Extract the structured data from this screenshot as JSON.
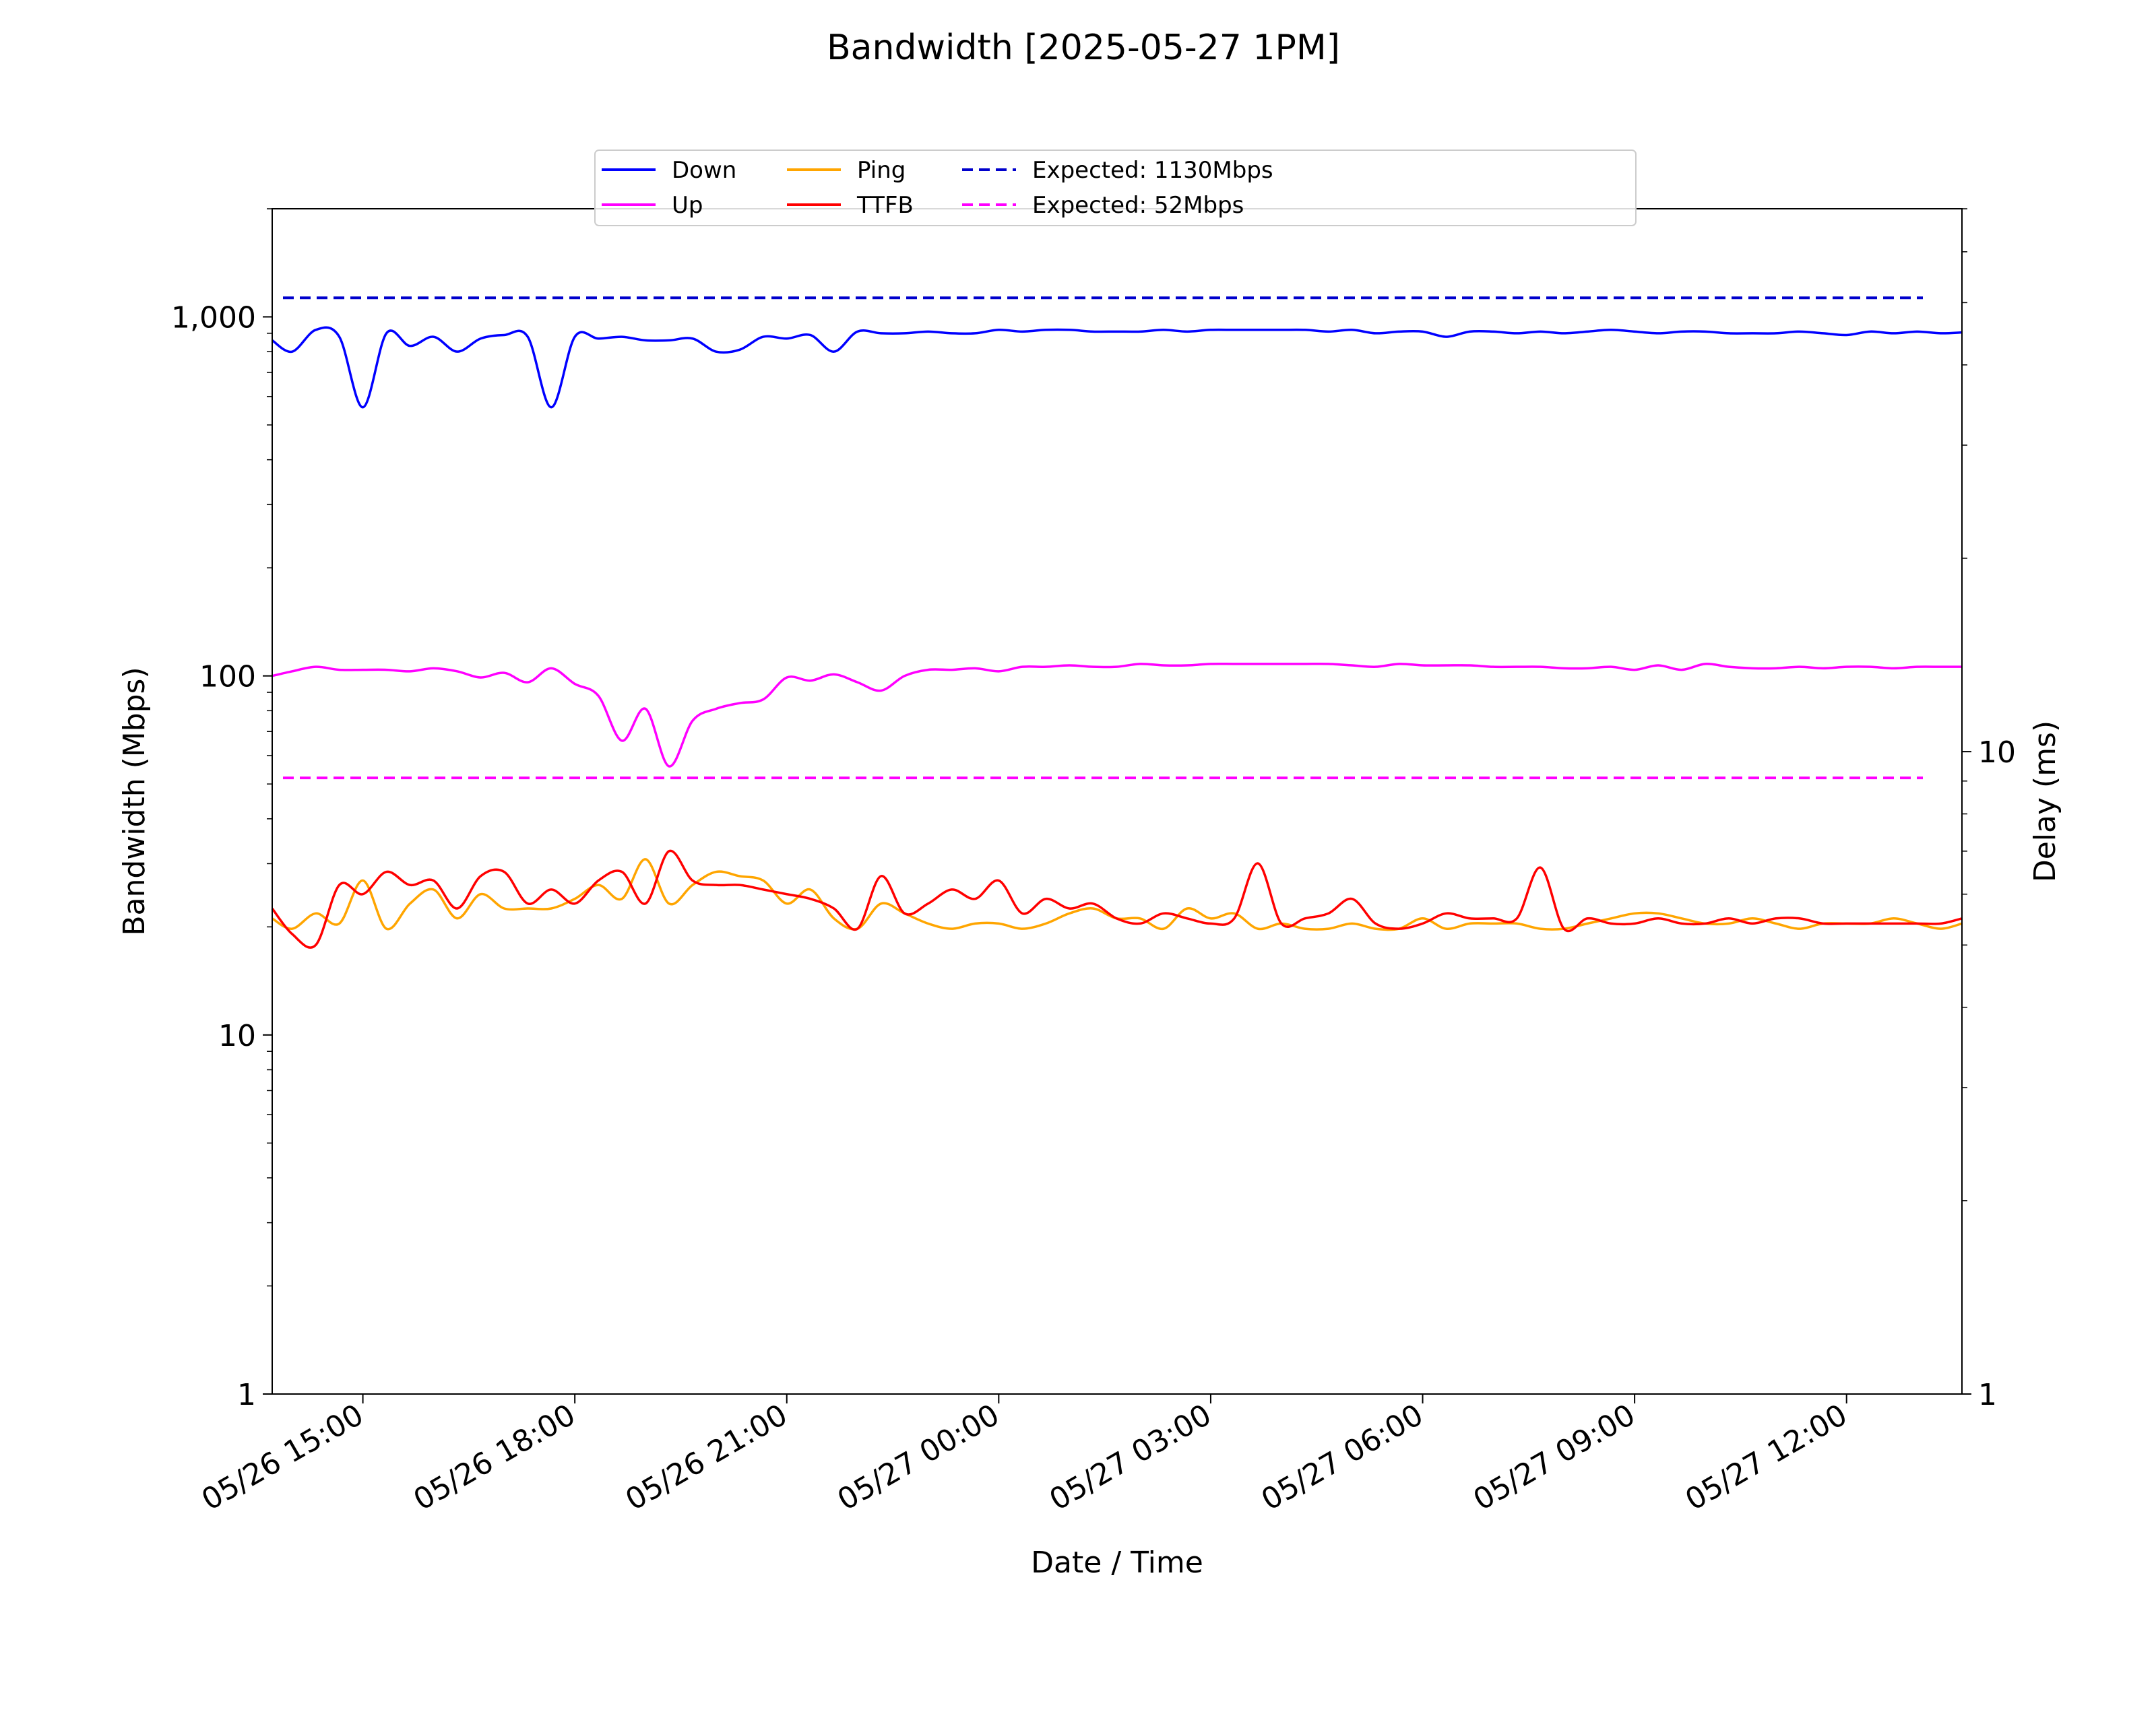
{
  "chart_data": {
    "type": "line",
    "title": "Bandwidth [2025-05-27 1PM]",
    "xlabel": "Date / Time",
    "ylabel": "Bandwidth (Mbps)",
    "y2label": "Delay (ms)",
    "x_range": [
      "2025-05-26 13:43",
      "2025-05-27 13:38"
    ],
    "x_ticks": [
      "05/26 15:00",
      "05/26 18:00",
      "05/26 21:00",
      "05/27 00:00",
      "05/27 03:00",
      "05/27 06:00",
      "05/27 09:00",
      "05/27 12:00"
    ],
    "x_tick_times": [
      "2025-05-26 15:00",
      "2025-05-26 18:00",
      "2025-05-26 21:00",
      "2025-05-27 00:00",
      "2025-05-27 03:00",
      "2025-05-27 06:00",
      "2025-05-27 09:00",
      "2025-05-27 12:00"
    ],
    "y_scale": "log",
    "ylim": [
      1,
      2000
    ],
    "y_ticks": [
      1,
      10,
      100,
      1000
    ],
    "y_tick_labels": [
      "1",
      "10",
      "100",
      "1,000"
    ],
    "y2_scale": "log",
    "y2lim": [
      1,
      70
    ],
    "y2_ticks": [
      1,
      10
    ],
    "y2_tick_labels": [
      "1",
      "10"
    ],
    "grid": false,
    "legend_position": "top-center",
    "legend_columns": 4,
    "x": [
      "2025-05-26 13:43",
      "2025-05-26 14:00",
      "2025-05-26 14:20",
      "2025-05-26 14:40",
      "2025-05-26 15:00",
      "2025-05-26 15:20",
      "2025-05-26 15:40",
      "2025-05-26 16:00",
      "2025-05-26 16:20",
      "2025-05-26 16:40",
      "2025-05-26 17:00",
      "2025-05-26 17:20",
      "2025-05-26 17:40",
      "2025-05-26 18:00",
      "2025-05-26 18:20",
      "2025-05-26 18:40",
      "2025-05-26 19:00",
      "2025-05-26 19:20",
      "2025-05-26 19:40",
      "2025-05-26 20:00",
      "2025-05-26 20:20",
      "2025-05-26 20:40",
      "2025-05-26 21:00",
      "2025-05-26 21:20",
      "2025-05-26 21:40",
      "2025-05-26 22:00",
      "2025-05-26 22:20",
      "2025-05-26 22:40",
      "2025-05-26 23:00",
      "2025-05-26 23:20",
      "2025-05-26 23:40",
      "2025-05-27 00:00",
      "2025-05-27 00:20",
      "2025-05-27 00:40",
      "2025-05-27 01:00",
      "2025-05-27 01:20",
      "2025-05-27 01:40",
      "2025-05-27 02:00",
      "2025-05-27 02:20",
      "2025-05-27 02:40",
      "2025-05-27 03:00",
      "2025-05-27 03:20",
      "2025-05-27 03:40",
      "2025-05-27 04:00",
      "2025-05-27 04:20",
      "2025-05-27 04:40",
      "2025-05-27 05:00",
      "2025-05-27 05:20",
      "2025-05-27 05:40",
      "2025-05-27 06:00",
      "2025-05-27 06:20",
      "2025-05-27 06:40",
      "2025-05-27 07:00",
      "2025-05-27 07:20",
      "2025-05-27 07:40",
      "2025-05-27 08:00",
      "2025-05-27 08:20",
      "2025-05-27 08:40",
      "2025-05-27 09:00",
      "2025-05-27 09:20",
      "2025-05-27 09:40",
      "2025-05-27 10:00",
      "2025-05-27 10:20",
      "2025-05-27 10:40",
      "2025-05-27 11:00",
      "2025-05-27 11:20",
      "2025-05-27 11:40",
      "2025-05-27 12:00",
      "2025-05-27 12:20",
      "2025-05-27 12:40",
      "2025-05-27 13:00",
      "2025-05-27 13:20",
      "2025-05-27 13:38"
    ],
    "series": [
      {
        "name": "Down",
        "axis": "left",
        "color": "#0000ff",
        "style": "solid",
        "values": [
          860,
          800,
          920,
          880,
          560,
          900,
          830,
          880,
          800,
          870,
          890,
          880,
          560,
          880,
          870,
          880,
          860,
          860,
          870,
          800,
          810,
          880,
          870,
          890,
          800,
          910,
          900,
          900,
          910,
          900,
          900,
          920,
          910,
          920,
          920,
          910,
          910,
          910,
          920,
          910,
          920,
          920,
          920,
          920,
          920,
          910,
          920,
          900,
          910,
          910,
          880,
          910,
          910,
          900,
          910,
          900,
          910,
          920,
          910,
          900,
          910,
          910,
          900,
          900,
          900,
          910,
          900,
          890,
          910,
          900,
          910,
          900,
          905
        ]
      },
      {
        "name": "Up",
        "axis": "left",
        "color": "#ff00ff",
        "style": "solid",
        "values": [
          100,
          103,
          106,
          104,
          104,
          104,
          103,
          105,
          103,
          99,
          102,
          96,
          105,
          95,
          88,
          66,
          81,
          56,
          75,
          81,
          84,
          86,
          99,
          97,
          101,
          96,
          91,
          100,
          104,
          104,
          105,
          103,
          106,
          106,
          107,
          106,
          106,
          108,
          107,
          107,
          108,
          108,
          108,
          108,
          108,
          108,
          107,
          106,
          108,
          107,
          107,
          107,
          106,
          106,
          106,
          105,
          105,
          106,
          104,
          107,
          104,
          108,
          106,
          105,
          105,
          106,
          105,
          106,
          106,
          105,
          106,
          106,
          106
        ]
      },
      {
        "name": "Ping",
        "axis": "right",
        "color": "#ffa500",
        "style": "solid",
        "values": [
          5.5,
          5.3,
          5.6,
          5.4,
          6.3,
          5.3,
          5.8,
          6.1,
          5.5,
          6.0,
          5.7,
          5.7,
          5.7,
          5.9,
          6.2,
          5.9,
          6.8,
          5.8,
          6.2,
          6.5,
          6.4,
          6.3,
          5.8,
          6.1,
          5.5,
          5.3,
          5.8,
          5.6,
          5.4,
          5.3,
          5.4,
          5.4,
          5.3,
          5.4,
          5.6,
          5.7,
          5.5,
          5.5,
          5.3,
          5.7,
          5.5,
          5.6,
          5.3,
          5.4,
          5.3,
          5.3,
          5.4,
          5.3,
          5.3,
          5.5,
          5.3,
          5.4,
          5.4,
          5.4,
          5.3,
          5.3,
          5.4,
          5.5,
          5.6,
          5.6,
          5.5,
          5.4,
          5.4,
          5.5,
          5.4,
          5.3,
          5.4,
          5.4,
          5.4,
          5.5,
          5.4,
          5.3,
          5.4
        ]
      },
      {
        "name": "TTFB",
        "axis": "right",
        "color": "#ff0000",
        "style": "solid",
        "values": [
          5.7,
          5.2,
          5.0,
          6.2,
          6.0,
          6.5,
          6.2,
          6.3,
          5.7,
          6.4,
          6.5,
          5.8,
          6.1,
          5.8,
          6.3,
          6.5,
          5.8,
          7.0,
          6.3,
          6.2,
          6.2,
          6.1,
          6.0,
          5.9,
          5.7,
          5.3,
          6.4,
          5.6,
          5.8,
          6.1,
          5.9,
          6.3,
          5.6,
          5.9,
          5.7,
          5.8,
          5.5,
          5.4,
          5.6,
          5.5,
          5.4,
          5.5,
          6.7,
          5.4,
          5.5,
          5.6,
          5.9,
          5.4,
          5.3,
          5.4,
          5.6,
          5.5,
          5.5,
          5.5,
          6.6,
          5.3,
          5.5,
          5.4,
          5.4,
          5.5,
          5.4,
          5.4,
          5.5,
          5.4,
          5.5,
          5.5,
          5.4,
          5.4,
          5.4,
          5.4,
          5.4,
          5.4,
          5.5
        ]
      },
      {
        "name": "Expected: 1130Mbps",
        "axis": "left",
        "color": "#0000cc",
        "style": "dashed",
        "constant": 1130
      },
      {
        "name": "Expected: 52Mbps",
        "axis": "left",
        "color": "#ff00ff",
        "style": "dashed",
        "constant": 52
      }
    ]
  }
}
